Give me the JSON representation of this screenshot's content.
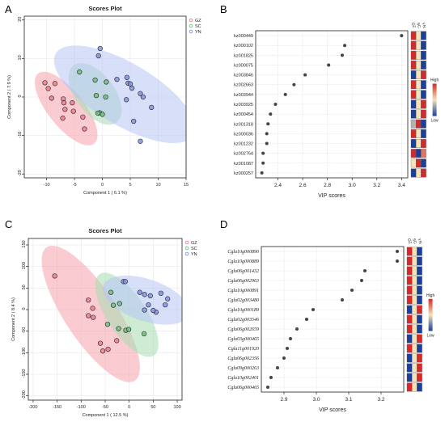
{
  "panels": {
    "A": "A",
    "B": "B",
    "C": "C",
    "D": "D"
  },
  "colors": {
    "GZ": "#f07f8a",
    "SC": "#6cc47e",
    "YN": "#7f95e6",
    "ellipse_GZ": "#f6a2ad",
    "ellipse_SC": "#a6dcb1",
    "ellipse_YN": "#b6c4f4",
    "heat_high": "#d32b2b",
    "heat_mid": "#f3e3b8",
    "heat_low": "#1b3f9a",
    "point": "#444444"
  },
  "chart_data": [
    {
      "panel": "A",
      "type": "scatter",
      "title": "Scores Plot",
      "xlabel": "Component 1 ( 6.1 %)",
      "ylabel": "Component 2 ( 7.9 %)",
      "xlim": [
        -14,
        15
      ],
      "ylim": [
        -21,
        21
      ],
      "xticks": [
        -10,
        -5,
        0,
        5,
        10,
        15
      ],
      "yticks": [
        -20,
        -10,
        0,
        10,
        20
      ],
      "legend": [
        "GZ",
        "SC",
        "YN"
      ],
      "legend_position": "top-right",
      "series": [
        {
          "name": "GZ",
          "points": [
            [
              -10.3,
              3.7
            ],
            [
              -9.7,
              2.2
            ],
            [
              -8.5,
              3.5
            ],
            [
              -9.1,
              -0.3
            ],
            [
              -7.0,
              -0.5
            ],
            [
              -6.9,
              -1.5
            ],
            [
              -6.7,
              -3.2
            ],
            [
              -5.4,
              -1.5
            ],
            [
              -5.2,
              -3.7
            ],
            [
              -3.5,
              -5.2
            ],
            [
              -3.2,
              -8.3
            ],
            [
              -7.1,
              -5.5
            ]
          ]
        },
        {
          "name": "SC",
          "points": [
            [
              -4.1,
              6.5
            ],
            [
              -1.3,
              4.4
            ],
            [
              -1.1,
              0.4
            ],
            [
              -0.5,
              -4.1
            ],
            [
              0.0,
              -4.5
            ],
            [
              0.6,
              0.0
            ],
            [
              0.7,
              3.9
            ],
            [
              -0.8,
              -4.2
            ]
          ]
        },
        {
          "name": "YN",
          "points": [
            [
              -0.4,
              12.6
            ],
            [
              -0.7,
              10.7
            ],
            [
              2.6,
              4.6
            ],
            [
              4.4,
              5.1
            ],
            [
              4.6,
              3.6
            ],
            [
              5.0,
              3.4
            ],
            [
              5.3,
              2.3
            ],
            [
              6.8,
              0.9
            ],
            [
              7.3,
              0.0
            ],
            [
              8.8,
              -2.7
            ],
            [
              4.3,
              -0.7
            ],
            [
              5.6,
              -6.3
            ],
            [
              6.8,
              -11.5
            ]
          ]
        }
      ],
      "ellipses": [
        {
          "group": "GZ",
          "cx": -6.5,
          "cy": -3.0,
          "rx": 10.5,
          "ry": 3.6,
          "angle": -64
        },
        {
          "group": "SC",
          "cx": -1.3,
          "cy": 0.8,
          "rx": 8.5,
          "ry": 3.8,
          "angle": -68
        },
        {
          "group": "YN",
          "cx": 4.0,
          "cy": 0.7,
          "rx": 16.5,
          "ry": 7.0,
          "angle": -45
        }
      ]
    },
    {
      "panel": "B",
      "type": "scatter",
      "xlabel": "VIP scores",
      "xlim": [
        2.22,
        3.45
      ],
      "xticks": [
        2.4,
        2.6,
        2.8,
        3.0,
        3.2,
        3.4
      ],
      "features": [
        "kz000449",
        "kz000102",
        "kz001825",
        "kz000075",
        "kz003846",
        "kz002663",
        "kz003944",
        "kz003925",
        "kz000454",
        "kz001318",
        "kz000036",
        "kz001232",
        "kz002764",
        "kz001087",
        "kz000257"
      ],
      "vip": [
        3.4,
        2.94,
        2.92,
        2.81,
        2.62,
        2.53,
        2.46,
        2.38,
        2.34,
        2.32,
        2.31,
        2.31,
        2.28,
        2.28,
        2.27
      ],
      "heatmap_columns": [
        "GZ",
        "SC",
        "YN"
      ],
      "heatmap_values": [
        [
          1,
          0,
          -1
        ],
        [
          1,
          0,
          -1
        ],
        [
          1,
          0,
          -1
        ],
        [
          1,
          0,
          -1
        ],
        [
          -1,
          0,
          1
        ],
        [
          1,
          0,
          -1
        ],
        [
          1,
          0,
          -1
        ],
        [
          -1,
          0,
          1
        ],
        [
          -1,
          0,
          1
        ],
        [
          -0.3,
          1,
          -1
        ],
        [
          1,
          0,
          -1
        ],
        [
          -1,
          0,
          1
        ],
        [
          1,
          -1,
          0.6
        ],
        [
          0,
          1,
          -1
        ],
        [
          -1,
          0,
          1
        ]
      ],
      "legend_high": "High",
      "legend_low": "Low"
    },
    {
      "panel": "C",
      "type": "scatter",
      "title": "Scores Plot",
      "xlabel": "Component 1 ( 12.5 %)",
      "ylabel": "Component 2 ( 8.4 %)",
      "xlim": [
        -210,
        110
      ],
      "ylim": [
        -210,
        165
      ],
      "xticks": [
        -200,
        -150,
        -100,
        -50,
        0,
        50,
        100
      ],
      "yticks": [
        -200,
        -150,
        -100,
        -50,
        0,
        50,
        100,
        150
      ],
      "legend": [
        "GZ",
        "SC",
        "YN"
      ],
      "legend_position": "top-right",
      "series": [
        {
          "name": "GZ",
          "points": [
            [
              -155,
              78
            ],
            [
              -85,
              22
            ],
            [
              -75,
              -18
            ],
            [
              -85,
              -14
            ],
            [
              -60,
              -78
            ],
            [
              -55,
              -96
            ],
            [
              -44,
              -92
            ],
            [
              -26,
              -72
            ],
            [
              -76,
              3
            ]
          ]
        },
        {
          "name": "SC",
          "points": [
            [
              -38,
              40
            ],
            [
              -33,
              10
            ],
            [
              -22,
              -44
            ],
            [
              -45,
              -34
            ],
            [
              -7,
              -48
            ],
            [
              -1,
              -46
            ],
            [
              31,
              -56
            ],
            [
              -20,
              14
            ]
          ]
        },
        {
          "name": "YN",
          "points": [
            [
              -12,
              65
            ],
            [
              -8,
              65
            ],
            [
              22,
              40
            ],
            [
              32,
              35
            ],
            [
              44,
              32
            ],
            [
              66,
              38
            ],
            [
              80,
              25
            ],
            [
              75,
              11
            ],
            [
              56,
              -6
            ],
            [
              50,
              -2
            ],
            [
              40,
              11
            ],
            [
              32,
              -1
            ]
          ]
        }
      ],
      "ellipses": [
        {
          "group": "GZ",
          "cx": -80,
          "cy": -10,
          "rx": 180,
          "ry": 56,
          "angle": -60
        },
        {
          "group": "SC",
          "cx": -5,
          "cy": -12,
          "rx": 110,
          "ry": 42,
          "angle": -60
        },
        {
          "group": "YN",
          "cx": 35,
          "cy": 22,
          "rx": 95,
          "ry": 48,
          "angle": -22
        }
      ]
    },
    {
      "panel": "D",
      "type": "scatter",
      "xlabel": "VIP scores",
      "xlim": [
        2.83,
        3.27
      ],
      "xticks": [
        2.9,
        3.0,
        3.1,
        3.2
      ],
      "features": [
        "Cgla10g000890",
        "Cgla10g000889",
        "Cgla06g001432",
        "Cgla06g002963",
        "Cgla10g000891",
        "Cgla02g003480",
        "Cgla10g000189",
        "Cgla02g003546",
        "Cgla06g002659",
        "Cgla03g000465",
        "Cgla11g001920",
        "Cgla06g002356",
        "Cgla09g000263",
        "Cgla10g002401",
        "Cgla06g000465"
      ],
      "vip": [
        3.25,
        3.25,
        3.15,
        3.14,
        3.11,
        3.08,
        2.99,
        2.97,
        2.94,
        2.92,
        2.91,
        2.9,
        2.88,
        2.86,
        2.85
      ],
      "heatmap_columns": [
        "GZ",
        "SC",
        "YN"
      ],
      "heatmap_values": [
        [
          1,
          0,
          -1
        ],
        [
          1,
          0,
          -1
        ],
        [
          1,
          0,
          -1
        ],
        [
          1,
          0,
          -1
        ],
        [
          1,
          0,
          -1
        ],
        [
          1,
          0,
          -1
        ],
        [
          -1,
          0,
          1
        ],
        [
          1,
          0,
          -1
        ],
        [
          1,
          0,
          -1
        ],
        [
          -1,
          0,
          1
        ],
        [
          1,
          0,
          -1
        ],
        [
          -1,
          0,
          1
        ],
        [
          -1,
          0,
          1
        ],
        [
          -1,
          0,
          1
        ],
        [
          1,
          0,
          -1
        ]
      ],
      "legend_high": "High",
      "legend_low": "Low"
    }
  ]
}
